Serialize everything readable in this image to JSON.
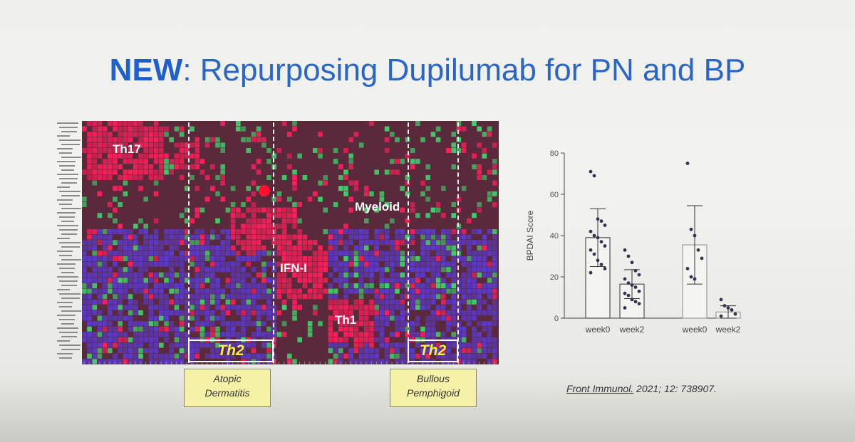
{
  "slide": {
    "title_bold": "NEW",
    "title_rest": ": Repurposing Dupilumab for PN and BP"
  },
  "heatmap": {
    "labels": {
      "th17": "Th17",
      "myeloid": "Myeloid",
      "ifn": "IFN-I",
      "th1": "Th1",
      "th2_left": "Th2",
      "th2_right": "Th2"
    },
    "colors": {
      "low": "#5a3ad0",
      "mid": "#5a2a3c",
      "high": "#ff1f5a",
      "green": "#3fd06a"
    }
  },
  "annotations": {
    "left_box": [
      "Atopic",
      "Dermatitis"
    ],
    "right_box": [
      "Bullous",
      "Pemphigoid"
    ]
  },
  "chart_data": {
    "type": "bar",
    "ylabel": "BPDAI Score",
    "ylim": [
      0,
      80
    ],
    "yticks": [
      0,
      20,
      40,
      60,
      80
    ],
    "categories": [
      "week0",
      "week2",
      "week0",
      "week2"
    ],
    "series": [
      {
        "values": [
          39,
          16.5,
          35.5,
          3
        ],
        "error": [
          14,
          7,
          19,
          3
        ]
      }
    ],
    "points": [
      [
        71,
        69,
        48,
        47,
        45,
        42,
        40,
        39,
        37,
        35,
        33,
        31,
        28,
        26,
        24,
        22
      ],
      [
        33,
        30,
        27,
        23,
        21,
        19,
        17,
        16,
        15,
        13,
        12,
        11,
        9,
        8,
        7,
        5
      ],
      [
        75,
        43,
        40,
        33,
        29,
        24,
        20,
        19
      ],
      [
        9,
        6,
        5,
        4,
        2,
        1
      ]
    ],
    "bar_edge_colors": [
      "#2f2f2f",
      "#2f2f2f",
      "#8a8a8a",
      "#8a8a8a"
    ]
  },
  "citation": {
    "journal": "Front Immunol.",
    "rest": " 2021; 12: 738907."
  }
}
